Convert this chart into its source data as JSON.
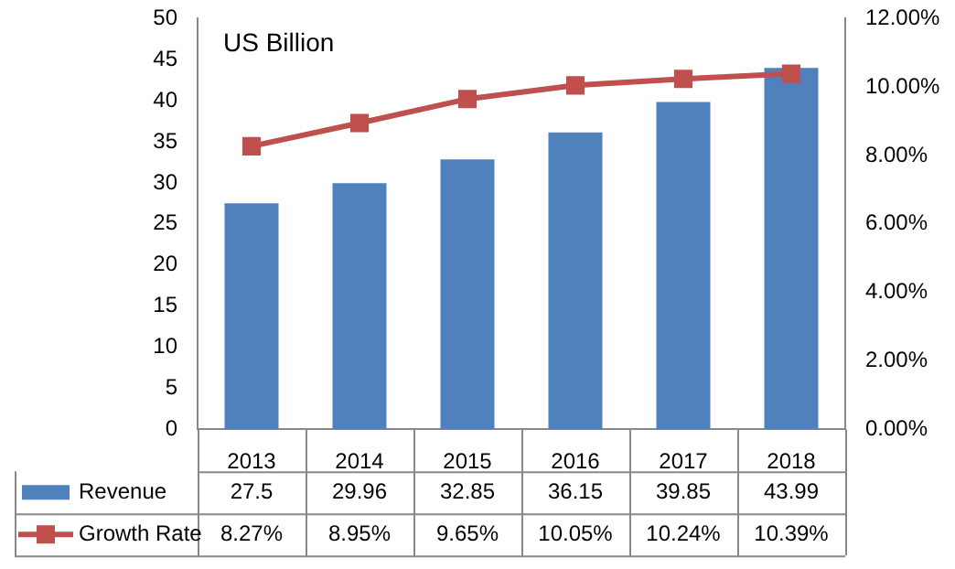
{
  "chart_data": {
    "type": "bar",
    "categories": [
      "2013",
      "2014",
      "2015",
      "2016",
      "2017",
      "2018"
    ],
    "series": [
      {
        "name": "Revenue",
        "color": "#4f81bd",
        "values": [
          27.5,
          29.96,
          32.85,
          36.15,
          39.85,
          43.99
        ],
        "value_labels": [
          "27.5",
          "29.96",
          "32.85",
          "36.15",
          "39.85",
          "43.99"
        ]
      },
      {
        "name": "Growth Rate",
        "type": "line",
        "axis": "y2",
        "color": "#c0504d",
        "marker": "square",
        "values": [
          8.27,
          8.95,
          9.65,
          10.05,
          10.24,
          10.39
        ],
        "value_labels": [
          "8.27%",
          "8.95%",
          "9.65%",
          "10.05%",
          "10.24%",
          "10.39%"
        ]
      }
    ],
    "ylim": [
      0,
      50
    ],
    "yticks": [
      0,
      5,
      10,
      15,
      20,
      25,
      30,
      35,
      40,
      45,
      50
    ],
    "y2lim": [
      0,
      12
    ],
    "y2ticks": [
      {
        "value": 0,
        "label": "0.00%"
      },
      {
        "value": 2,
        "label": "2.00%"
      },
      {
        "value": 4,
        "label": "4.00%"
      },
      {
        "value": 6,
        "label": "6.00%"
      },
      {
        "value": 8,
        "label": "8.00%"
      },
      {
        "value": 10,
        "label": "10.00%"
      },
      {
        "value": 12,
        "label": "12.00%"
      }
    ],
    "grid": false,
    "legend": "bottom",
    "annotations": [
      "US Billion"
    ]
  }
}
